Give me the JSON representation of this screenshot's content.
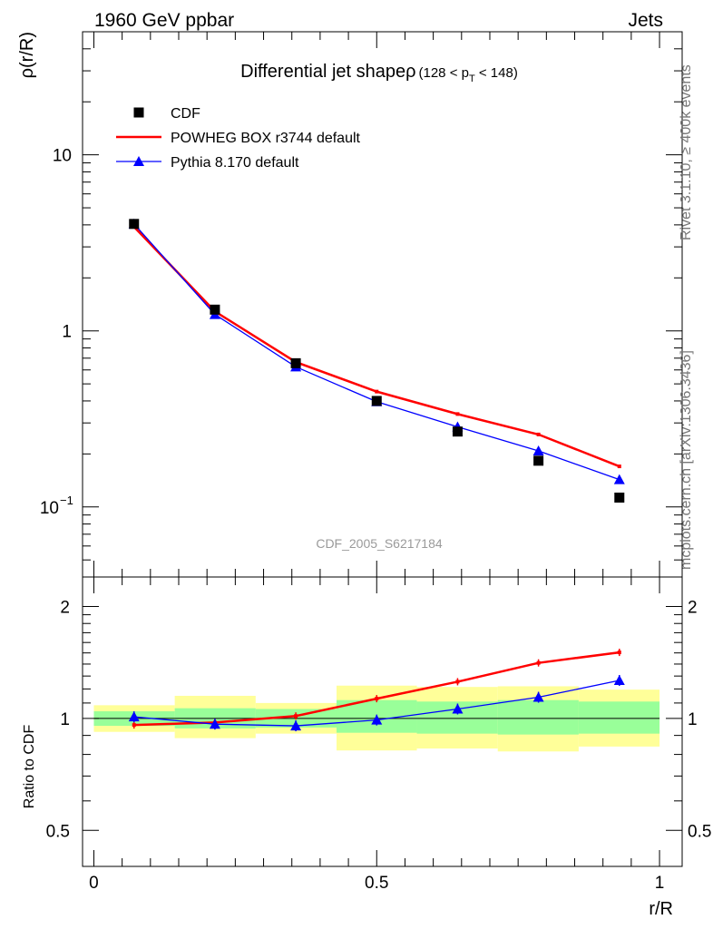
{
  "header": {
    "left": "1960 GeV ppbar",
    "right": "Jets"
  },
  "side_labels": {
    "top": "Rivet 3.1.10, ≥ 400k events",
    "bottom": "mcplots.cern.ch [arXiv:1306.3436]"
  },
  "main_panel": {
    "title": "Differential jet shapeρ",
    "title_sub": "(128 < p",
    "title_sub_index": "T",
    "title_sub_end": " < 148)",
    "ylabel": "ρ(r/R)",
    "watermark": "CDF_2005_S6217184",
    "y_ticks": [
      {
        "value": 0.1,
        "label": "10",
        "exp": "−1"
      },
      {
        "value": 1,
        "label": "1",
        "exp": ""
      },
      {
        "value": 10,
        "label": "10",
        "exp": ""
      }
    ],
    "legend": [
      {
        "label": "CDF",
        "color": "#000000",
        "marker": "square"
      },
      {
        "label": "POWHEG BOX r3744 default",
        "color": "#ff0000",
        "marker": "line"
      },
      {
        "label": "Pythia 8.170 default",
        "color": "#0000ff",
        "marker": "triangle"
      }
    ]
  },
  "ratio_panel": {
    "ylabel": "Ratio to CDF",
    "y_ticks": [
      {
        "value": 0.5,
        "label": "0.5"
      },
      {
        "value": 1,
        "label": "1"
      },
      {
        "value": 2,
        "label": "2"
      }
    ]
  },
  "x_axis": {
    "label": "r/R",
    "ticks": [
      {
        "value": 0,
        "label": "0"
      },
      {
        "value": 0.5,
        "label": "0.5"
      },
      {
        "value": 1,
        "label": "1"
      }
    ]
  },
  "chart_data": {
    "type": "line",
    "xlim": [
      -0.02,
      1.04
    ],
    "ylim_main": [
      0.04,
      50
    ],
    "ylim_ratio": [
      0.4,
      2.4
    ],
    "yscale_main": "log",
    "yscale_ratio": "log",
    "bin_edges": [
      0,
      0.143,
      0.286,
      0.429,
      0.571,
      0.714,
      0.857,
      1.0
    ],
    "x": [
      0.071,
      0.214,
      0.357,
      0.5,
      0.643,
      0.786,
      0.929
    ],
    "series": [
      {
        "name": "CDF",
        "color": "#000000",
        "marker": "square",
        "values": [
          4.05,
          1.32,
          0.655,
          0.4,
          0.268,
          0.183,
          0.113
        ]
      },
      {
        "name": "POWHEG BOX r3744 default",
        "color": "#ff0000",
        "marker": "line",
        "values": [
          3.9,
          1.29,
          0.665,
          0.452,
          0.337,
          0.258,
          0.17
        ]
      },
      {
        "name": "Pythia 8.170 default",
        "color": "#0000ff",
        "marker": "triangle",
        "values": [
          4.05,
          1.24,
          0.625,
          0.396,
          0.285,
          0.208,
          0.143
        ]
      }
    ],
    "ratio_series": [
      {
        "name": "POWHEG BOX r3744 default",
        "color": "#ff0000",
        "values": [
          0.96,
          0.975,
          1.015,
          1.13,
          1.255,
          1.41,
          1.505
        ]
      },
      {
        "name": "Pythia 8.170 default",
        "color": "#0000ff",
        "values": [
          1.01,
          0.965,
          0.955,
          0.99,
          1.06,
          1.14,
          1.265
        ]
      }
    ],
    "uncertainty_bands": {
      "stat_green": [
        [
          0.955,
          1.045
        ],
        [
          0.94,
          1.065
        ],
        [
          0.945,
          1.06
        ],
        [
          0.915,
          1.12
        ],
        [
          0.91,
          1.11
        ],
        [
          0.905,
          1.12
        ],
        [
          0.91,
          1.11
        ]
      ],
      "total_yellow": [
        [
          0.92,
          1.085
        ],
        [
          0.885,
          1.15
        ],
        [
          0.91,
          1.1
        ],
        [
          0.82,
          1.225
        ],
        [
          0.83,
          1.215
        ],
        [
          0.815,
          1.22
        ],
        [
          0.84,
          1.195
        ]
      ]
    }
  }
}
